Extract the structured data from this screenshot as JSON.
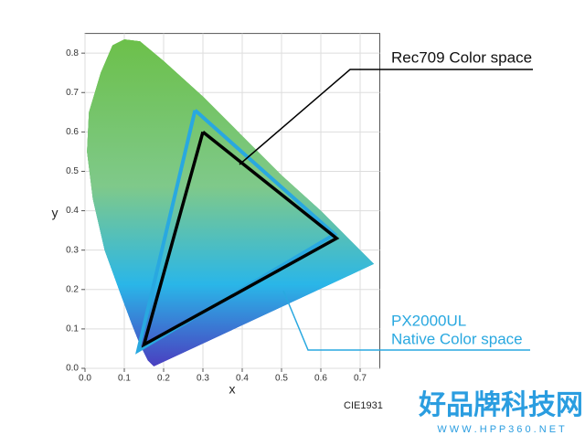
{
  "chart_data": {
    "type": "line",
    "x_label": "x",
    "y_label": "y",
    "xlim": [
      0,
      0.75
    ],
    "ylim": [
      0,
      0.85
    ],
    "xticks": [
      {
        "value": 0,
        "label": "0.0"
      },
      0.1,
      0.2,
      0.3,
      0.4,
      0.5,
      0.6,
      0.7
    ],
    "yticks": [
      {
        "value": 0,
        "label": "0.0"
      },
      0.1,
      0.2,
      0.3,
      0.4,
      0.5,
      0.6,
      0.7,
      0.8
    ],
    "grid": true,
    "series": [
      {
        "name": "PX2000UL",
        "color": "#29a8e0",
        "x": [
          0.28,
          0.635,
          0.135,
          0.28
        ],
        "values": [
          0.655,
          0.34,
          0.045,
          0.655
        ]
      },
      {
        "name": "Rec709",
        "color": "#000000",
        "x": [
          0.3,
          0.64,
          0.15,
          0.3
        ],
        "values": [
          0.6,
          0.33,
          0.06,
          0.6
        ]
      }
    ],
    "annotations": [
      "Rec709  Color space",
      "PX2000UL",
      "Native Color space",
      "CIE1931"
    ],
    "watermark": [
      "好品牌科技网",
      "W W W . H P P 3 6 0 . N E T"
    ]
  }
}
